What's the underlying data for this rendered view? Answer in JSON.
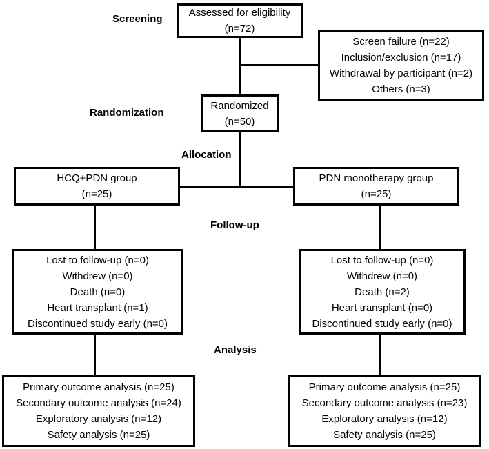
{
  "stages": {
    "screening": "Screening",
    "randomization": "Randomization",
    "allocation": "Allocation",
    "followup": "Follow-up",
    "analysis": "Analysis"
  },
  "boxes": {
    "assessed": {
      "lines": [
        "Assessed for eligibility",
        "(n=72)"
      ]
    },
    "excluded": {
      "lines": [
        "Screen failure (n=22)",
        "Inclusion/exclusion (n=17)",
        "Withdrawal by participant (n=2)",
        "Others (n=3)"
      ]
    },
    "randomized": {
      "lines": [
        "Randomized",
        "(n=50)"
      ]
    },
    "hcq_group": {
      "lines": [
        "HCQ+PDN group",
        "(n=25)"
      ]
    },
    "pdn_group": {
      "lines": [
        "PDN monotherapy group",
        "(n=25)"
      ]
    },
    "followup_hcq": {
      "lines": [
        "Lost to follow-up (n=0)",
        "Withdrew (n=0)",
        "Death (n=0)",
        "Heart transplant (n=1)",
        "Discontinued study early (n=0)"
      ]
    },
    "followup_pdn": {
      "lines": [
        "Lost to follow-up (n=0)",
        "Withdrew (n=0)",
        "Death (n=2)",
        "Heart transplant (n=0)",
        "Discontinued study early (n=0)"
      ]
    },
    "analysis_hcq": {
      "lines": [
        "Primary outcome analysis (n=25)",
        "Secondary outcome analysis (n=24)",
        "Exploratory analysis (n=12)",
        "Safety analysis (n=25)"
      ]
    },
    "analysis_pdn": {
      "lines": [
        "Primary outcome analysis (n=25)",
        "Secondary outcome analysis (n=23)",
        "Exploratory analysis (n=12)",
        "Safety analysis (n=25)"
      ]
    }
  },
  "colors": {
    "line": "#000000",
    "background": "#ffffff",
    "text": "#000000"
  }
}
